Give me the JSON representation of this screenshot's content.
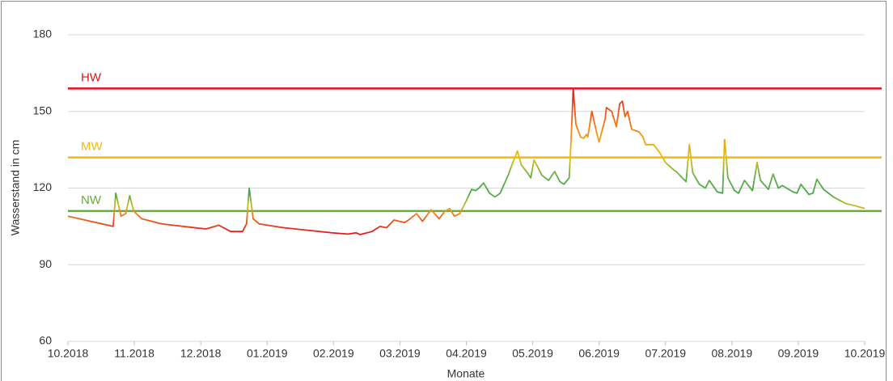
{
  "chart_data": {
    "type": "line",
    "xlabel": "Monate",
    "ylabel": "Wasserstand in cm",
    "xlim": [
      0,
      12
    ],
    "xticks": [
      {
        "value": 0,
        "label": "10.2018"
      },
      {
        "value": 1,
        "label": "11.2018"
      },
      {
        "value": 2,
        "label": "12.2018"
      },
      {
        "value": 3,
        "label": "01.2019"
      },
      {
        "value": 4,
        "label": "02.2019"
      },
      {
        "value": 5,
        "label": "03.2019"
      },
      {
        "value": 6,
        "label": "04.2019"
      },
      {
        "value": 7,
        "label": "05.2019"
      },
      {
        "value": 8,
        "label": "06.2019"
      },
      {
        "value": 9,
        "label": "07.2019"
      },
      {
        "value": 10,
        "label": "08.2019"
      },
      {
        "value": 11,
        "label": "09.2019"
      },
      {
        "value": 12,
        "label": "10.2019"
      }
    ],
    "ylim": [
      60,
      180
    ],
    "yticks": [
      60,
      90,
      120,
      150,
      180
    ],
    "grid": true,
    "colorscale": [
      {
        "value": 159,
        "color": "#e3171c"
      },
      {
        "value": 150,
        "color": "#f0561a"
      },
      {
        "value": 140,
        "color": "#f39a12"
      },
      {
        "value": 132,
        "color": "#e8c000"
      },
      {
        "value": 125,
        "color": "#6ab04c"
      },
      {
        "value": 118,
        "color": "#43a847"
      },
      {
        "value": 113,
        "color": "#c8c020"
      },
      {
        "value": 110,
        "color": "#f08020"
      },
      {
        "value": 106,
        "color": "#e84a1a"
      },
      {
        "value": 102,
        "color": "#e3171c"
      }
    ],
    "reference_lines": [
      {
        "label": "HW",
        "value": 159,
        "color": "#e3101a"
      },
      {
        "label": "MW",
        "value": 132,
        "color": "#f2b90f"
      },
      {
        "label": "NW",
        "value": 111,
        "color": "#6aaa3a"
      }
    ],
    "x": [
      0,
      0.68,
      0.72,
      0.8,
      0.87,
      0.93,
      0.99,
      1.11,
      1.41,
      1.9,
      2.08,
      2.21,
      2.27,
      2.45,
      2.63,
      2.69,
      2.73,
      2.79,
      2.88,
      3.24,
      3.61,
      3.97,
      4.22,
      4.34,
      4.4,
      4.58,
      4.7,
      4.8,
      4.91,
      5.07,
      5.13,
      5.25,
      5.34,
      5.47,
      5.59,
      5.68,
      5.75,
      5.82,
      5.9,
      5.98,
      6.08,
      6.14,
      6.19,
      6.26,
      6.35,
      6.43,
      6.51,
      6.63,
      6.7,
      6.77,
      6.83,
      6.92,
      6.97,
      7.02,
      7.14,
      7.24,
      7.33,
      7.41,
      7.47,
      7.55,
      7.58,
      7.61,
      7.65,
      7.72,
      7.77,
      7.81,
      7.83,
      7.89,
      7.97,
      8,
      8.09,
      8.11,
      8.19,
      8.26,
      8.31,
      8.35,
      8.39,
      8.43,
      8.49,
      8.6,
      8.66,
      8.7,
      8.82,
      8.91,
      9,
      9.13,
      9.16,
      9.31,
      9.36,
      9.41,
      9.51,
      9.6,
      9.66,
      9.78,
      9.86,
      9.89,
      9.94,
      10.04,
      10.1,
      10.19,
      10.31,
      10.38,
      10.43,
      10.55,
      10.62,
      10.7,
      10.76,
      10.92,
      10.98,
      11.04,
      11.16,
      11.22,
      11.28,
      11.38,
      11.53,
      11.71,
      11.87,
      12
    ],
    "values": [
      109,
      105,
      118,
      109,
      110,
      117,
      111,
      108,
      106,
      104.5,
      104,
      105,
      105.5,
      103,
      103,
      106,
      120,
      108,
      106,
      104.5,
      103.5,
      102.5,
      102,
      102.5,
      101.8,
      103,
      105,
      104.5,
      107.5,
      106.5,
      107.5,
      110,
      107,
      111.5,
      108,
      111,
      112,
      109,
      110,
      114,
      119.5,
      119,
      120,
      122,
      118,
      116.5,
      118,
      125,
      130,
      134.5,
      129,
      126,
      124,
      131,
      125,
      123,
      126.5,
      122.5,
      121.5,
      124,
      140,
      159,
      145,
      140,
      139.5,
      141,
      140,
      150,
      141,
      138,
      147,
      151.5,
      150,
      144,
      153,
      154,
      148,
      150,
      143,
      142,
      140,
      137,
      137,
      134,
      130,
      127,
      126.5,
      122.5,
      137,
      126,
      121.5,
      120,
      123,
      118.5,
      118,
      139,
      124,
      119,
      118,
      123,
      119,
      130,
      123,
      119.5,
      125.5,
      120,
      121,
      118.5,
      118,
      121.5,
      117.5,
      118,
      123.5,
      119.5,
      116.5,
      114,
      113,
      112
    ]
  }
}
